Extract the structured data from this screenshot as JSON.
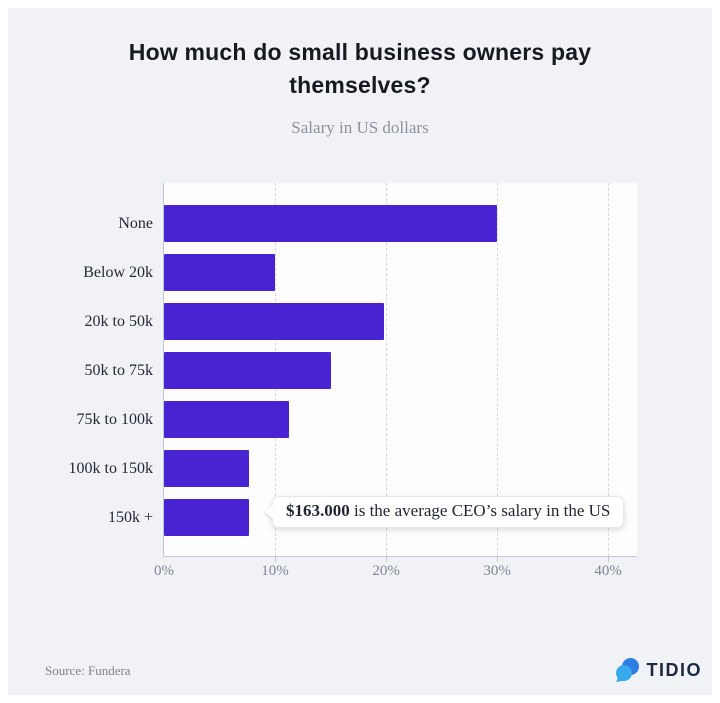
{
  "header": {
    "title": "How much do small business owners pay themselves?",
    "subtitle": "Salary in US dollars"
  },
  "chart_data": {
    "type": "bar",
    "orientation": "horizontal",
    "title": "How much do small business owners pay themselves?",
    "subtitle": "Salary in US dollars",
    "categories": [
      "None",
      "Below 20k",
      "20k to 50k",
      "50k to 75k",
      "75k to 100k",
      "100k to 150k",
      "150k +"
    ],
    "values": [
      30,
      10,
      19.8,
      15,
      11.3,
      7.7,
      7.7
    ],
    "unit": "%",
    "xtick_values": [
      0,
      10,
      20,
      30,
      40
    ],
    "xtick_labels": [
      "0%",
      "10%",
      "20%",
      "30%",
      "40%"
    ],
    "xlim": [
      0,
      42.6
    ],
    "grid": "vertical-dashed",
    "legend": "none",
    "bar_color": "#4723d2",
    "annotation": {
      "amount": "$163.000",
      "text": " is the average CEO’s salary in the US",
      "attached_to": "150k +"
    }
  },
  "footer": {
    "source": "Source: Fundera",
    "brand": "TIDIO",
    "brand_icon": "tidio-chat-bubbles-icon"
  },
  "colors": {
    "page_bg": "#ffffff",
    "card_bg": "#f1f2f5",
    "plot_bg": "#fdfdfe",
    "bar": "#4723d2",
    "gridline": "#d8d9de",
    "axis_line": "#c2c6ce",
    "title_text": "#16191f",
    "subtitle_text": "#8d929e",
    "label_text": "#242933",
    "tick_text": "#7f8594",
    "source_text": "#7d828d",
    "brand_text": "#1b2740",
    "brand_icon_dark": "#2e7ce4",
    "brand_icon_light": "#36a9ea",
    "callout_text": "#1e2431"
  }
}
